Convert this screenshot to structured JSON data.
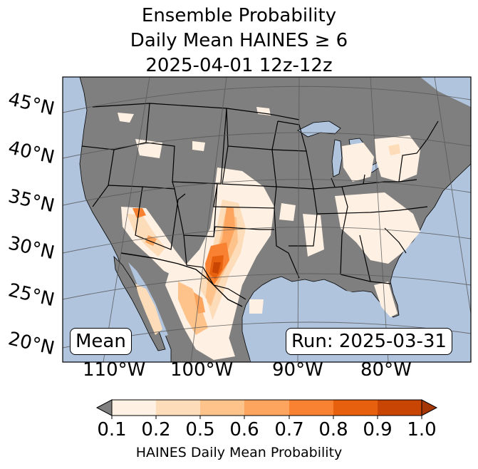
{
  "title": {
    "line1": "Ensemble Probability",
    "line2": "Daily Mean HAINES ≥ 6",
    "line3": "2025-04-01 12z-12z"
  },
  "badges": {
    "left": "Mean",
    "right": "Run: 2025-03-31"
  },
  "lat_labels": [
    "45°N",
    "40°N",
    "35°N",
    "30°N",
    "25°N",
    "20°N"
  ],
  "lon_labels": [
    "110°W",
    "100°W",
    "90°W",
    "80°W"
  ],
  "colorbar": {
    "ticks": [
      "0.1",
      "0.2",
      "0.5",
      "0.6",
      "0.7",
      "0.8",
      "0.9",
      "1.0"
    ],
    "label": "HAINES Daily Mean Probability",
    "colors": [
      "#fef0e2",
      "#fddcb9",
      "#fdc38b",
      "#fda45e",
      "#f98232",
      "#e6600e",
      "#c94504"
    ],
    "under_color": "#7f7f7f",
    "over_color": "#a63603"
  },
  "colors": {
    "ocean": "#b0c4de",
    "land": "#7f7f7f"
  }
}
